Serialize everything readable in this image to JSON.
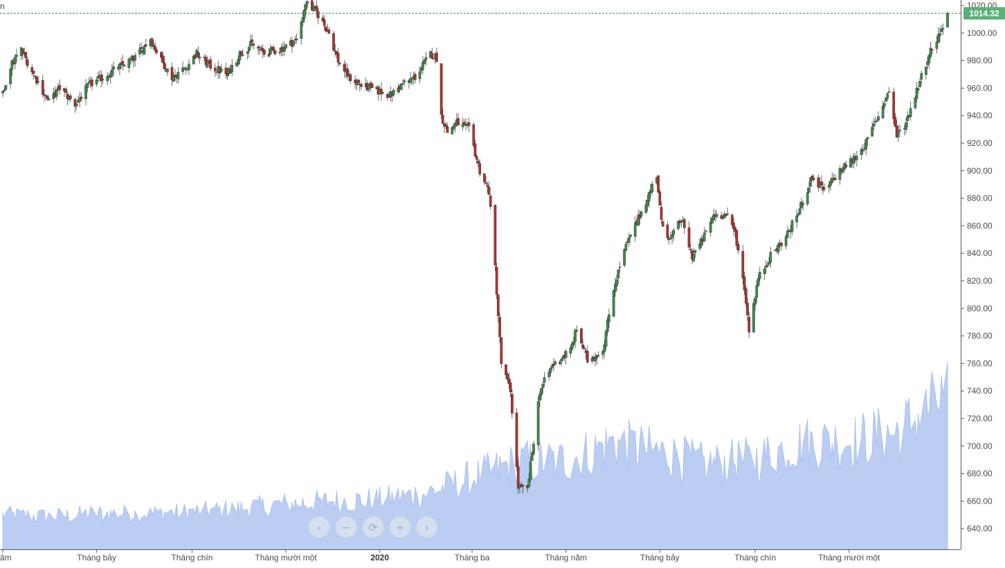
{
  "corner_label": "n",
  "nav": {
    "prev_icon": "‹",
    "zoom_out_icon": "−",
    "reset_icon": "⟳",
    "zoom_in_icon": "+",
    "next_icon": "›"
  },
  "colors": {
    "up": "#3f8d4e",
    "down": "#b8302b",
    "wick": "#444444",
    "volume": "#b4c8f2",
    "volume_line": "#9fb7ea",
    "last_line": "#2e8b57",
    "last_tag": "#5fae79"
  },
  "chart_data": {
    "type": "candlestick",
    "y_axis": {
      "ylim": [
        625,
        1024
      ],
      "ticks": [
        640,
        660,
        680,
        700,
        720,
        740,
        760,
        780,
        800,
        820,
        840,
        860,
        880,
        900,
        920,
        940,
        960,
        980,
        1000,
        1020
      ],
      "tick_labels": [
        "640.00",
        "660.00",
        "680.00",
        "700.00",
        "720.00",
        "740.00",
        "760.00",
        "780.00",
        "800.00",
        "820.00",
        "840.00",
        "860.00",
        "880.00",
        "900.00",
        "920.00",
        "940.00",
        "960.00",
        "980.00",
        "1000.00",
        "1020.00"
      ]
    },
    "x_axis": {
      "tick_labels": [
        "ăm",
        "Tháng bảy",
        "Tháng chín",
        "Tháng mười một",
        "2020",
        "Tháng ba",
        "Tháng năm",
        "Tháng bảy",
        "Tháng chín",
        "Tháng mười một"
      ],
      "tick_dates": [
        "2019-05-01",
        "2019-07-01",
        "2019-09-01",
        "2019-11-01",
        "2020-01-01",
        "2020-03-01",
        "2020-05-01",
        "2020-07-01",
        "2020-09-01",
        "2020-11-01"
      ],
      "bold": [
        "2020"
      ]
    },
    "last_price": 1014.32,
    "last_price_label": "1014.32",
    "price_path": [
      [
        "2019-05-01",
        955
      ],
      [
        "2019-05-06",
        976
      ],
      [
        "2019-05-13",
        988
      ],
      [
        "2019-05-22",
        968
      ],
      [
        "2019-05-31",
        950
      ],
      [
        "2019-06-07",
        960
      ],
      [
        "2019-06-17",
        948
      ],
      [
        "2019-06-26",
        962
      ],
      [
        "2019-07-05",
        968
      ],
      [
        "2019-07-15",
        975
      ],
      [
        "2019-07-26",
        982
      ],
      [
        "2019-08-05",
        996
      ],
      [
        "2019-08-12",
        980
      ],
      [
        "2019-08-19",
        968
      ],
      [
        "2019-08-28",
        975
      ],
      [
        "2019-09-04",
        985
      ],
      [
        "2019-09-13",
        976
      ],
      [
        "2019-09-24",
        970
      ],
      [
        "2019-10-02",
        985
      ],
      [
        "2019-10-10",
        992
      ],
      [
        "2019-10-18",
        985
      ],
      [
        "2019-10-28",
        988
      ],
      [
        "2019-11-08",
        995
      ],
      [
        "2019-11-14",
        1022
      ],
      [
        "2019-11-21",
        1015
      ],
      [
        "2019-11-29",
        1000
      ],
      [
        "2019-12-05",
        980
      ],
      [
        "2019-12-12",
        968
      ],
      [
        "2019-12-20",
        962
      ],
      [
        "2019-12-30",
        958
      ],
      [
        "2020-01-08",
        955
      ],
      [
        "2020-01-16",
        963
      ],
      [
        "2020-01-24",
        968
      ],
      [
        "2020-02-03",
        985
      ],
      [
        "2020-02-07",
        982
      ],
      [
        "2020-02-10",
        940
      ],
      [
        "2020-02-14",
        928
      ],
      [
        "2020-02-20",
        935
      ],
      [
        "2020-02-28",
        930
      ],
      [
        "2020-03-06",
        900
      ],
      [
        "2020-03-12",
        885
      ],
      [
        "2020-03-16",
        830
      ],
      [
        "2020-03-20",
        760
      ],
      [
        "2020-03-26",
        740
      ],
      [
        "2020-03-31",
        670
      ],
      [
        "2020-04-06",
        668
      ],
      [
        "2020-04-14",
        740
      ],
      [
        "2020-04-22",
        758
      ],
      [
        "2020-05-04",
        770
      ],
      [
        "2020-05-08",
        785
      ],
      [
        "2020-05-15",
        762
      ],
      [
        "2020-05-25",
        770
      ],
      [
        "2020-06-01",
        815
      ],
      [
        "2020-06-08",
        842
      ],
      [
        "2020-06-15",
        860
      ],
      [
        "2020-06-22",
        878
      ],
      [
        "2020-06-29",
        897
      ],
      [
        "2020-07-02",
        862
      ],
      [
        "2020-07-08",
        850
      ],
      [
        "2020-07-15",
        865
      ],
      [
        "2020-07-22",
        838
      ],
      [
        "2020-07-29",
        850
      ],
      [
        "2020-08-05",
        868
      ],
      [
        "2020-08-13",
        868
      ],
      [
        "2020-08-19",
        855
      ],
      [
        "2020-08-25",
        815
      ],
      [
        "2020-08-28",
        785
      ],
      [
        "2020-09-03",
        822
      ],
      [
        "2020-09-11",
        838
      ],
      [
        "2020-09-21",
        852
      ],
      [
        "2020-09-30",
        872
      ],
      [
        "2020-10-08",
        895
      ],
      [
        "2020-10-16",
        885
      ],
      [
        "2020-10-26",
        900
      ],
      [
        "2020-11-05",
        910
      ],
      [
        "2020-11-12",
        920
      ],
      [
        "2020-11-20",
        940
      ],
      [
        "2020-11-27",
        958
      ],
      [
        "2020-12-02",
        925
      ],
      [
        "2020-12-08",
        935
      ],
      [
        "2020-12-16",
        962
      ],
      [
        "2020-12-23",
        985
      ],
      [
        "2020-12-30",
        1000
      ],
      [
        "2021-01-04",
        1014.32
      ]
    ],
    "volume_path": [
      [
        "2019-05-01",
        2.2
      ],
      [
        "2019-06-01",
        2.1
      ],
      [
        "2019-07-01",
        2.3
      ],
      [
        "2019-08-01",
        2.3
      ],
      [
        "2019-09-01",
        2.4
      ],
      [
        "2019-10-01",
        2.6
      ],
      [
        "2019-11-01",
        2.9
      ],
      [
        "2019-12-01",
        3.1
      ],
      [
        "2020-01-01",
        3.2
      ],
      [
        "2020-02-01",
        3.6
      ],
      [
        "2020-03-01",
        4.6
      ],
      [
        "2020-04-01",
        5.6
      ],
      [
        "2020-05-01",
        5.7
      ],
      [
        "2020-06-01",
        6.8
      ],
      [
        "2020-07-01",
        6.2
      ],
      [
        "2020-08-01",
        5.4
      ],
      [
        "2020-09-01",
        5.8
      ],
      [
        "2020-10-01",
        6.8
      ],
      [
        "2020-11-01",
        6.9
      ],
      [
        "2020-12-01",
        7.5
      ],
      [
        "2021-01-04",
        9.8
      ]
    ]
  }
}
